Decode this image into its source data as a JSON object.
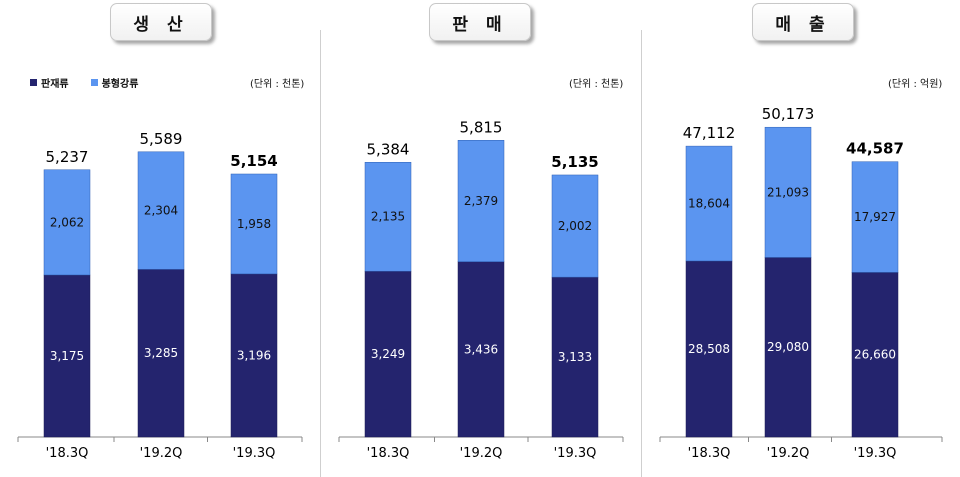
{
  "colors": {
    "bottom": "#24246e",
    "top": "#5b95f0",
    "axis": "#888888"
  },
  "legend": {
    "bottom_label": "판재류",
    "top_label": "봉형강류"
  },
  "chart_data": [
    {
      "type": "bar",
      "title": "생 산",
      "unit": "(단위 : 천톤)",
      "categories": [
        "'18.3Q",
        "'19.2Q",
        "'19.3Q"
      ],
      "series": [
        {
          "name": "판재류",
          "values": [
            3175,
            3285,
            3196
          ]
        },
        {
          "name": "봉형강류",
          "values": [
            2062,
            2304,
            1958
          ]
        }
      ],
      "totals": [
        5237,
        5589,
        5154
      ],
      "value_labels": {
        "bottom": [
          "3,175",
          "3,285",
          "3,196"
        ],
        "top": [
          "2,062",
          "2,304",
          "1,958"
        ],
        "totals": [
          "5,237",
          "5,589",
          "5,154"
        ]
      },
      "highlight_total_index": 2,
      "ylim": [
        0,
        6800
      ],
      "legend_position": "top-left"
    },
    {
      "type": "bar",
      "title": "판 매",
      "unit": "(단위 : 천톤)",
      "categories": [
        "'18.3Q",
        "'19.2Q",
        "'19.3Q"
      ],
      "series": [
        {
          "values": [
            3249,
            3436,
            3133
          ]
        },
        {
          "values": [
            2135,
            2379,
            2002
          ]
        }
      ],
      "totals": [
        5384,
        5815,
        5135
      ],
      "value_labels": {
        "bottom": [
          "3,249",
          "3,436",
          "3,133"
        ],
        "top": [
          "2,135",
          "2,379",
          "2,002"
        ],
        "totals": [
          "5,384",
          "5,815",
          "5,135"
        ]
      },
      "highlight_total_index": 2,
      "ylim": [
        0,
        6800
      ]
    },
    {
      "type": "bar",
      "title": "매 출",
      "unit": "(단위 : 억원)",
      "categories": [
        "'18.3Q",
        "'19.2Q",
        "'19.3Q"
      ],
      "series": [
        {
          "values": [
            28508,
            29080,
            26660
          ]
        },
        {
          "values": [
            18604,
            21093,
            17927
          ]
        }
      ],
      "totals": [
        47112,
        50173,
        44587
      ],
      "value_labels": {
        "bottom": [
          "28,508",
          "29,080",
          "26,660"
        ],
        "top": [
          "18,604",
          "21,093",
          "17,927"
        ],
        "totals": [
          "47,112",
          "50,173",
          "44,587"
        ]
      },
      "highlight_total_index": 2,
      "ylim": [
        0,
        56200
      ]
    }
  ]
}
